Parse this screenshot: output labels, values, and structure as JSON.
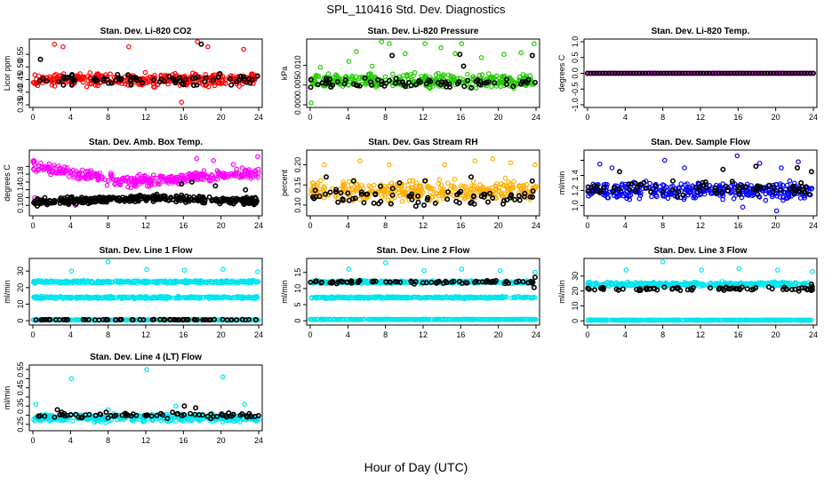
{
  "figure": {
    "title": "SPL_110416  Std. Dev. Diagnostics",
    "xlabel": "Hour of Day (UTC)"
  },
  "colors": {
    "black": "#000000",
    "red": "#ff0000",
    "green": "#22cc00",
    "magenta": "#ff00ff",
    "orange": "#ffb000",
    "blue": "#0000ff",
    "cyan": "#00e5ee"
  },
  "chart_data": [
    {
      "type": "scatter",
      "title": "Stan. Dev. Li-820 CO2",
      "ylabel": "Licor ppm",
      "xlim": [
        0,
        24
      ],
      "ylim": [
        0.35,
        0.6
      ],
      "xticks": [
        "0",
        "4",
        "8",
        "12",
        "16",
        "20",
        "24"
      ],
      "yticks": [
        0.35,
        0.4,
        0.45,
        0.5,
        0.55
      ],
      "ytick_labels": [
        "0.35",
        "0.40",
        "0.45",
        "0.50",
        "0.55"
      ],
      "series": [
        {
          "color": "red",
          "bands": [
            {
              "center": 0.45,
              "spread": 0.035
            }
          ],
          "outliers": [
            [
              2.3,
              0.59
            ],
            [
              3.2,
              0.58
            ],
            [
              10.2,
              0.58
            ],
            [
              15.8,
              0.36
            ],
            [
              17.5,
              0.6
            ],
            [
              18.6,
              0.58
            ],
            [
              22.4,
              0.57
            ]
          ]
        },
        {
          "color": "black",
          "bands": [
            {
              "center": 0.45,
              "spread": 0.03
            }
          ],
          "outliers": [
            [
              0.8,
              0.53
            ],
            [
              17.9,
              0.59
            ]
          ]
        }
      ]
    },
    {
      "type": "scatter",
      "title": "Stan. Dev. Li-820 Pressure",
      "ylabel": "kPa",
      "xlim": [
        0,
        24
      ],
      "ylim": [
        0,
        0.016
      ],
      "xticks": [
        "0",
        "4",
        "8",
        "12",
        "16",
        "20",
        "24"
      ],
      "yticks": [
        0,
        0.005,
        0.01
      ],
      "ytick_labels": [
        "0.000",
        "0.005",
        "0.010"
      ],
      "series": [
        {
          "color": "green",
          "bands": [
            {
              "center": 0.006,
              "spread": 0.0025
            }
          ],
          "outliers": [
            [
              0.1,
              0.0005
            ],
            [
              1.1,
              0.0095
            ],
            [
              4.1,
              0.011
            ],
            [
              4.9,
              0.0135
            ],
            [
              6.6,
              0.0098
            ],
            [
              7.6,
              0.016
            ],
            [
              8.4,
              0.0155
            ],
            [
              10.1,
              0.013
            ],
            [
              12.2,
              0.0155
            ],
            [
              13.9,
              0.0145
            ],
            [
              15.4,
              0.013
            ],
            [
              16.1,
              0.0155
            ],
            [
              18.2,
              0.012
            ],
            [
              20.6,
              0.0128
            ],
            [
              22.4,
              0.0132
            ],
            [
              23.8,
              0.0155
            ]
          ]
        },
        {
          "color": "black",
          "bands": [
            {
              "center": 0.0055,
              "spread": 0.0018
            }
          ],
          "outliers": [
            [
              8.7,
              0.0125
            ],
            [
              15.9,
              0.0128
            ],
            [
              16.3,
              0.0098
            ],
            [
              23.6,
              0.0125
            ]
          ]
        }
      ]
    },
    {
      "type": "scatter",
      "title": "Stan. Dev. Li-820 Temp.",
      "ylabel": "degrees C",
      "xlim": [
        0,
        24
      ],
      "ylim": [
        -1,
        1
      ],
      "xticks": [
        "0",
        "4",
        "8",
        "12",
        "16",
        "20",
        "24"
      ],
      "yticks": [
        -1,
        -0.5,
        0,
        0.5,
        1
      ],
      "ytick_labels": [
        "-1.0",
        "-0.5",
        "0.0",
        "0.5",
        "1.0"
      ],
      "series": [
        {
          "color": "magenta",
          "bands": [
            {
              "center": 0,
              "spread": 0
            }
          ],
          "outliers": []
        },
        {
          "color": "black",
          "bands": [
            {
              "center": 0,
              "spread": 0
            }
          ],
          "outliers": []
        }
      ]
    },
    {
      "type": "scatter",
      "title": "Stan. Dev. Amb. Box Temp.",
      "ylabel": "degrees C",
      "xlim": [
        0,
        24
      ],
      "ylim": [
        0.08,
        0.235
      ],
      "xticks": [
        "0",
        "4",
        "8",
        "12",
        "16",
        "20",
        "24"
      ],
      "yticks": [
        0.1,
        0.12,
        0.14,
        0.16,
        0.18,
        0.2
      ],
      "ytick_labels": [
        "0.10",
        "",
        "0.14",
        "",
        "0.18",
        ""
      ],
      "series": [
        {
          "color": "magenta",
          "trend": [
            [
              0,
              0.2
            ],
            [
              10,
              0.16
            ],
            [
              24,
              0.185
            ]
          ],
          "spread": 0.02,
          "outliers": [
            [
              0.2,
              0.12
            ],
            [
              2.1,
              0.11
            ],
            [
              4.5,
              0.1
            ],
            [
              8.8,
              0.12
            ],
            [
              17.4,
              0.22
            ],
            [
              19.2,
              0.215
            ],
            [
              21.3,
              0.205
            ],
            [
              23.9,
              0.225
            ]
          ]
        },
        {
          "color": "black",
          "trend": [
            [
              0,
              0.108
            ],
            [
              12,
              0.12
            ],
            [
              24,
              0.11
            ]
          ],
          "spread": 0.012,
          "outliers": [
            [
              15.8,
              0.155
            ],
            [
              16.9,
              0.16
            ],
            [
              19.4,
              0.15
            ],
            [
              22.6,
              0.14
            ]
          ]
        }
      ]
    },
    {
      "type": "scatter",
      "title": "Stan. Dev. Gas Stream RH",
      "ylabel": "percent",
      "xlim": [
        0,
        24
      ],
      "ylim": [
        0.08,
        0.23
      ],
      "xticks": [
        "0",
        "4",
        "8",
        "12",
        "16",
        "20",
        "24"
      ],
      "yticks": [
        0.1,
        0.15,
        0.2
      ],
      "ytick_labels": [
        "0.10",
        "0.15",
        "0.20"
      ],
      "series": [
        {
          "color": "orange",
          "bands": [
            {
              "center": 0.135,
              "spread": 0.035
            }
          ],
          "outliers": [
            [
              1.5,
              0.2
            ],
            [
              5.3,
              0.21
            ],
            [
              8.4,
              0.2
            ],
            [
              14.3,
              0.2
            ],
            [
              17.5,
              0.21
            ],
            [
              19.4,
              0.215
            ],
            [
              21.3,
              0.205
            ],
            [
              23.9,
              0.2
            ]
          ]
        },
        {
          "color": "black",
          "bands": [
            {
              "center": 0.12,
              "spread": 0.03
            }
          ],
          "outliers": [
            [
              1.7,
              0.17
            ],
            [
              4.6,
              0.16
            ],
            [
              9.5,
              0.155
            ],
            [
              12.2,
              0.16
            ],
            [
              17.1,
              0.17
            ],
            [
              23.6,
              0.16
            ]
          ]
        }
      ]
    },
    {
      "type": "scatter",
      "title": "Stan. Dev. Sample Flow",
      "ylabel": "ml/min",
      "xlim": [
        0,
        24
      ],
      "ylim": [
        0.9,
        1.7
      ],
      "xticks": [
        "0",
        "4",
        "8",
        "12",
        "16",
        "20",
        "24"
      ],
      "yticks": [
        1.0,
        1.2,
        1.4,
        1.6
      ],
      "ytick_labels": [
        "1.0",
        "1.2",
        "1.4",
        ""
      ],
      "series": [
        {
          "color": "blue",
          "bands": [
            {
              "center": 1.2,
              "spread": 0.16
            }
          ],
          "outliers": [
            [
              1.3,
              1.55
            ],
            [
              2.6,
              1.5
            ],
            [
              8.2,
              1.6
            ],
            [
              10.3,
              1.5
            ],
            [
              15.9,
              1.66
            ],
            [
              18.3,
              1.56
            ],
            [
              20.6,
              1.5
            ],
            [
              22.4,
              1.58
            ],
            [
              16.5,
              0.98
            ],
            [
              20.1,
              0.93
            ]
          ]
        },
        {
          "color": "black",
          "bands": [
            {
              "center": 1.22,
              "spread": 0.13
            }
          ],
          "outliers": [
            [
              3.4,
              1.45
            ],
            [
              14.4,
              1.48
            ],
            [
              17.9,
              1.52
            ],
            [
              22.3,
              1.5
            ],
            [
              23.8,
              1.45
            ]
          ]
        }
      ]
    },
    {
      "type": "scatter",
      "title": "Stan. Dev. Line 1 Flow",
      "ylabel": "ml/min",
      "xlim": [
        0,
        24
      ],
      "ylim": [
        -1,
        36
      ],
      "xticks": [
        "0",
        "4",
        "8",
        "12",
        "16",
        "20",
        "24"
      ],
      "yticks": [
        0,
        10,
        20,
        30
      ],
      "ytick_labels": [
        "0",
        "10",
        "20",
        "30"
      ],
      "series": [
        {
          "color": "cyan",
          "bands": [
            {
              "center": 23.5,
              "spread": 1.2
            },
            {
              "center": 14,
              "spread": 0.9
            },
            {
              "center": 0.5,
              "spread": 0.2
            }
          ],
          "outliers": [
            [
              4.1,
              30
            ],
            [
              8.0,
              35.5
            ],
            [
              12.1,
              31
            ],
            [
              16.1,
              30.5
            ],
            [
              20.2,
              31
            ],
            [
              23.9,
              29.5
            ]
          ]
        },
        {
          "color": "black",
          "bands": [
            {
              "center": 0.6,
              "spread": 0.25
            }
          ],
          "outliers": []
        }
      ]
    },
    {
      "type": "scatter",
      "title": "Stan. Dev. Line 2 Flow",
      "ylabel": "ml/min",
      "xlim": [
        0,
        24
      ],
      "ylim": [
        -0.5,
        18.5
      ],
      "xticks": [
        "0",
        "4",
        "8",
        "12",
        "16",
        "20",
        "24"
      ],
      "yticks": [
        0,
        5,
        10,
        15
      ],
      "ytick_labels": [
        "0",
        "5",
        "10",
        "15"
      ],
      "series": [
        {
          "color": "cyan",
          "bands": [
            {
              "center": 12,
              "spread": 0.6
            },
            {
              "center": 7.2,
              "spread": 0.4
            },
            {
              "center": 0.4,
              "spread": 0.15
            }
          ],
          "outliers": [
            [
              4.1,
              16
            ],
            [
              8.0,
              18
            ],
            [
              12.1,
              15.5
            ],
            [
              16.1,
              16
            ],
            [
              20.2,
              15.5
            ],
            [
              23.9,
              15
            ]
          ]
        },
        {
          "color": "black",
          "bands": [
            {
              "center": 12,
              "spread": 0.7
            }
          ],
          "outliers": [
            [
              23.8,
              10.3
            ],
            [
              23.9,
              13.5
            ]
          ]
        }
      ]
    },
    {
      "type": "scatter",
      "title": "Stan. Dev. Line 3 Flow",
      "ylabel": "ml/min",
      "xlim": [
        0,
        24
      ],
      "ylim": [
        -1,
        40
      ],
      "xticks": [
        "0",
        "4",
        "8",
        "12",
        "16",
        "20",
        "24"
      ],
      "yticks": [
        0,
        10,
        20,
        30
      ],
      "ytick_labels": [
        "0",
        "10",
        "20",
        "30"
      ],
      "series": [
        {
          "color": "cyan",
          "bands": [
            {
              "center": 24.5,
              "spread": 2.2
            },
            {
              "center": 0.5,
              "spread": 0.2
            }
          ],
          "outliers": [
            [
              4.1,
              34
            ],
            [
              8.0,
              39.5
            ],
            [
              12.1,
              34
            ],
            [
              16.1,
              35
            ],
            [
              20.2,
              34
            ],
            [
              23.9,
              33
            ]
          ]
        },
        {
          "color": "black",
          "bands": [
            {
              "center": 21.5,
              "spread": 1.8
            }
          ],
          "outliers": [
            [
              23.8,
              24.5
            ]
          ]
        }
      ]
    },
    {
      "type": "scatter",
      "title": "Stan. Dev. Line 4 (LT) Flow",
      "ylabel": "ml/min",
      "xlim": [
        0,
        24
      ],
      "ylim": [
        0.23,
        0.56
      ],
      "xticks": [
        "0",
        "4",
        "8",
        "12",
        "16",
        "20",
        "24"
      ],
      "yticks": [
        0.25,
        0.3,
        0.35,
        0.4,
        0.45,
        0.5,
        0.55
      ],
      "ytick_labels": [
        "0.25",
        "",
        "0.35",
        "",
        "0.45",
        "",
        "0.55"
      ],
      "series": [
        {
          "color": "cyan",
          "bands": [
            {
              "center": 0.285,
              "spread": 0.028
            }
          ],
          "outliers": [
            [
              4.1,
              0.5
            ],
            [
              12.1,
              0.55
            ],
            [
              20.2,
              0.51
            ],
            [
              0.3,
              0.36
            ],
            [
              8.0,
              0.33
            ],
            [
              22.5,
              0.36
            ],
            [
              15.2,
              0.35
            ]
          ]
        },
        {
          "color": "black",
          "bands": [
            {
              "center": 0.3,
              "spread": 0.022
            }
          ],
          "outliers": [
            [
              2.6,
              0.33
            ],
            [
              16.1,
              0.35
            ],
            [
              17.3,
              0.34
            ]
          ]
        }
      ]
    }
  ]
}
